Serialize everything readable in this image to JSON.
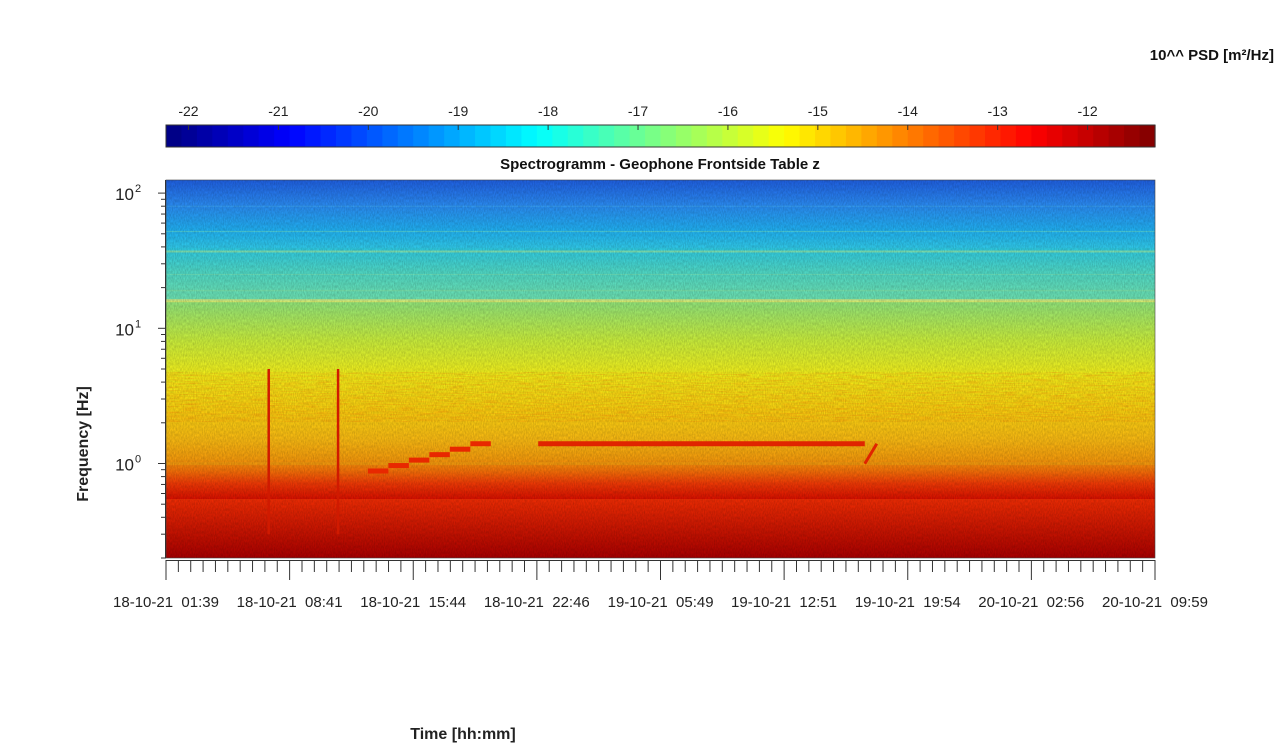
{
  "chart_data": {
    "type": "heatmap",
    "title": "Spectrogramm - Geophone Frontside Table z",
    "xlabel": "Time [hh:mm]",
    "ylabel": "Frequency [Hz]",
    "colorbar": {
      "label": "10^^ PSD [m²/Hz]",
      "ticks": [
        -22,
        -21,
        -20,
        -19,
        -18,
        -17,
        -16,
        -15,
        -14,
        -13,
        -12
      ],
      "range": [
        -22.25,
        -11.25
      ],
      "colormap": "jet",
      "placement": "top"
    },
    "y_axis": {
      "scale": "log",
      "range_hz": [
        0.2,
        125
      ],
      "ticks": [
        1,
        10,
        100
      ],
      "tick_labels": [
        "10",
        "10",
        "10"
      ],
      "tick_exponents": [
        "0",
        "1",
        "2"
      ]
    },
    "x_axis": {
      "tick_labels": [
        "18-10-21  01:39",
        "18-10-21  08:41",
        "18-10-21  15:44",
        "18-10-21  22:46",
        "19-10-21  05:49",
        "19-10-21  12:51",
        "19-10-21  19:54",
        "20-10-21  02:56",
        "20-10-21  09:59"
      ],
      "tick_hours": [
        0,
        7.04,
        14.08,
        21.12,
        28.17,
        35.2,
        42.25,
        49.28,
        56.33
      ]
    },
    "grid": false,
    "features": [
      {
        "kind": "staircase",
        "start_hour": 11.5,
        "end_hour": 18.5,
        "freq_hz": [
          0.88,
          1.4
        ]
      },
      {
        "kind": "line",
        "start_hour": 21.2,
        "end_hour": 39.8,
        "freq_hz": 1.4
      },
      {
        "kind": "impulse",
        "hour": 5.85
      },
      {
        "kind": "impulse",
        "hour": 9.8
      }
    ]
  }
}
